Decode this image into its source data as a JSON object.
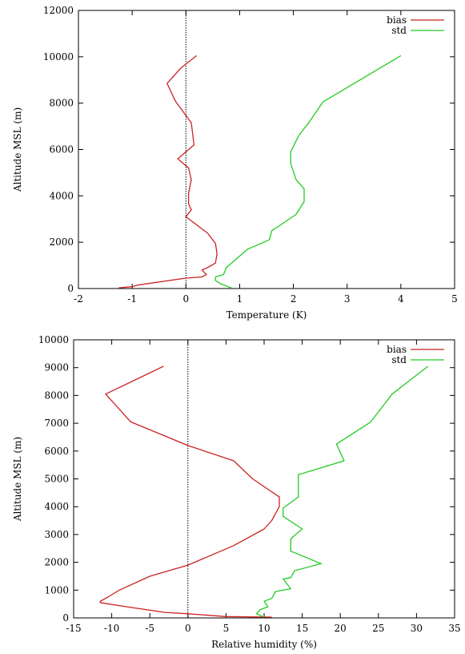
{
  "chart_data": [
    {
      "type": "line",
      "xlabel": "Temperature (K)",
      "ylabel": "Altitude MSL (m)",
      "xlim": [
        -2,
        5
      ],
      "ylim": [
        0,
        12000
      ],
      "xticks": [
        "-2",
        "-1",
        "0",
        "1",
        "2",
        "3",
        "4",
        "5"
      ],
      "yticks": [
        "0",
        "2000",
        "4000",
        "6000",
        "8000",
        "10000",
        "12000"
      ],
      "reference_line": {
        "x": 0,
        "style": "dotted"
      },
      "legend_position": "top-right",
      "series": [
        {
          "name": "bias",
          "color": "#cc2222",
          "points": [
            [
              0.2,
              10050
            ],
            [
              -0.1,
              9500
            ],
            [
              -0.35,
              8850
            ],
            [
              -0.2,
              8100
            ],
            [
              0.1,
              7150
            ],
            [
              0.15,
              6200
            ],
            [
              -0.15,
              5600
            ],
            [
              0.05,
              5200
            ],
            [
              0.1,
              4700
            ],
            [
              0.05,
              4100
            ],
            [
              0.05,
              3650
            ],
            [
              0.1,
              3400
            ],
            [
              0.0,
              3100
            ],
            [
              0.4,
              2400
            ],
            [
              0.55,
              1950
            ],
            [
              0.58,
              1500
            ],
            [
              0.55,
              1100
            ],
            [
              0.4,
              900
            ],
            [
              0.3,
              800
            ],
            [
              0.38,
              600
            ],
            [
              0.3,
              500
            ],
            [
              0.0,
              450
            ],
            [
              -0.9,
              150
            ],
            [
              -1.0,
              80
            ],
            [
              -1.25,
              30
            ]
          ]
        },
        {
          "name": "std",
          "color": "#22cc22",
          "points": [
            [
              4.0,
              10050
            ],
            [
              2.55,
              8050
            ],
            [
              2.3,
              7200
            ],
            [
              2.1,
              6600
            ],
            [
              1.95,
              5900
            ],
            [
              1.95,
              5400
            ],
            [
              2.05,
              4700
            ],
            [
              2.2,
              4300
            ],
            [
              2.2,
              3750
            ],
            [
              2.05,
              3200
            ],
            [
              1.8,
              2800
            ],
            [
              1.6,
              2500
            ],
            [
              1.55,
              2100
            ],
            [
              1.15,
              1700
            ],
            [
              0.85,
              1100
            ],
            [
              0.75,
              900
            ],
            [
              0.7,
              600
            ],
            [
              0.55,
              500
            ],
            [
              0.55,
              350
            ],
            [
              0.65,
              200
            ],
            [
              0.85,
              20
            ]
          ]
        }
      ]
    },
    {
      "type": "line",
      "xlabel": "Relative humidity (%)",
      "ylabel": "Altitude MSL (m)",
      "xlim": [
        -15,
        35
      ],
      "ylim": [
        0,
        10000
      ],
      "xticks": [
        "-15",
        "-10",
        "-5",
        "0",
        "5",
        "10",
        "15",
        "20",
        "25",
        "30",
        "35"
      ],
      "yticks": [
        "0",
        "1000",
        "2000",
        "3000",
        "4000",
        "5000",
        "6000",
        "7000",
        "8000",
        "9000",
        "10000"
      ],
      "reference_line": {
        "x": 0,
        "style": "dotted"
      },
      "legend_position": "top-right",
      "series": [
        {
          "name": "bias",
          "color": "#cc2222",
          "points": [
            [
              -3.2,
              9050
            ],
            [
              -10.8,
              8050
            ],
            [
              -7.5,
              7050
            ],
            [
              0.0,
              6200
            ],
            [
              6.0,
              5650
            ],
            [
              8.5,
              5000
            ],
            [
              12.0,
              4350
            ],
            [
              12.0,
              4000
            ],
            [
              11.0,
              3500
            ],
            [
              10.0,
              3200
            ],
            [
              6.0,
              2600
            ],
            [
              0.0,
              1900
            ],
            [
              -5.0,
              1500
            ],
            [
              -9.0,
              1000
            ],
            [
              -10.5,
              750
            ],
            [
              -11.5,
              600
            ],
            [
              -11.5,
              550
            ],
            [
              -8.0,
              400
            ],
            [
              -3.0,
              200
            ],
            [
              0.0,
              150
            ],
            [
              5.0,
              50
            ],
            [
              11.0,
              30
            ]
          ]
        },
        {
          "name": "std",
          "color": "#22cc22",
          "points": [
            [
              31.5,
              9050
            ],
            [
              26.8,
              8050
            ],
            [
              24.0,
              7050
            ],
            [
              19.5,
              6250
            ],
            [
              20.5,
              5650
            ],
            [
              14.5,
              5150
            ],
            [
              14.5,
              4350
            ],
            [
              12.5,
              3950
            ],
            [
              12.5,
              3650
            ],
            [
              15.0,
              3200
            ],
            [
              13.5,
              2850
            ],
            [
              13.5,
              2400
            ],
            [
              17.5,
              1950
            ],
            [
              14.0,
              1700
            ],
            [
              13.5,
              1450
            ],
            [
              12.5,
              1400
            ],
            [
              13.5,
              1050
            ],
            [
              11.5,
              950
            ],
            [
              11.0,
              700
            ],
            [
              10.0,
              600
            ],
            [
              10.5,
              400
            ],
            [
              9.5,
              300
            ],
            [
              9.0,
              150
            ],
            [
              10.0,
              30
            ]
          ]
        }
      ]
    }
  ]
}
